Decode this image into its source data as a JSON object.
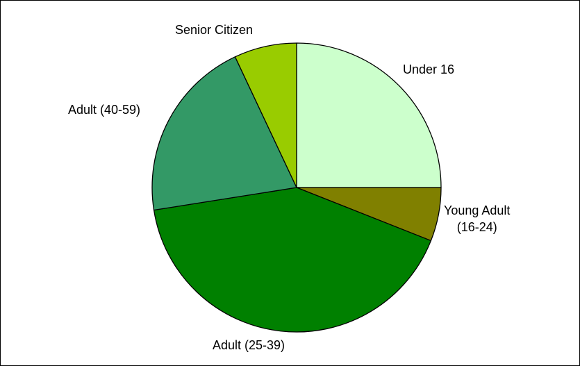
{
  "chart_data": {
    "type": "pie",
    "title": "",
    "slices": [
      {
        "label": "Under 16",
        "label_lines": [
          "Under 16"
        ],
        "value": 25,
        "color": "#ccffcc"
      },
      {
        "label": "Young Adult (16-24)",
        "label_lines": [
          "Young Adult",
          "(16-24)"
        ],
        "value": 6,
        "color": "#808000"
      },
      {
        "label": "Adult (25-39)",
        "label_lines": [
          "Adult (25-39)"
        ],
        "value": 41.5,
        "color": "#008000"
      },
      {
        "label": "Adult (40-59)",
        "label_lines": [
          "Adult (40-59)"
        ],
        "value": 20.5,
        "color": "#339966"
      },
      {
        "label": "Senior Citizen",
        "label_lines": [
          "Senior Citizen"
        ],
        "value": 7,
        "color": "#99cc00"
      }
    ],
    "start_angle_deg": 0,
    "direction": "clockwise",
    "legend": "none",
    "slice_outline_color": "#000000",
    "frame_border_color": "#000000"
  }
}
